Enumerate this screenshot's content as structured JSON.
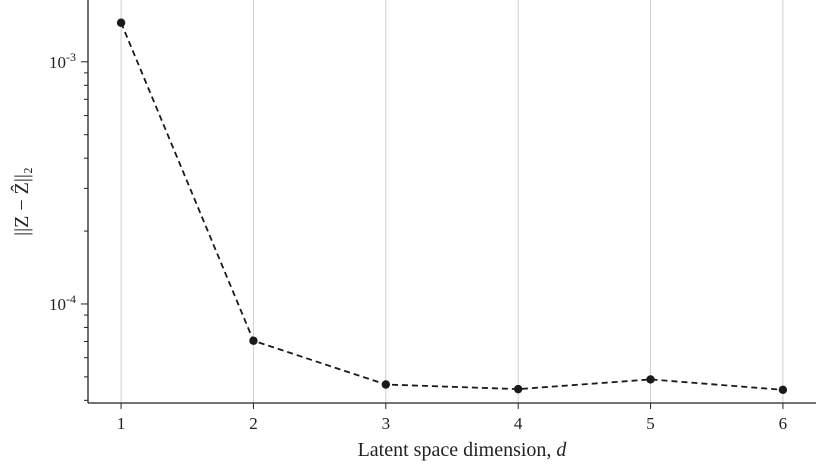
{
  "chart_data": {
    "type": "line",
    "title": "",
    "xlabel": "Latent space dimension, ",
    "xlabel_var": "d",
    "ylabel_tex": "||Z − Ẑ||₂",
    "y_scale": "log",
    "ylim": [
      3.9e-05,
      0.0018
    ],
    "xlim": [
      0.75,
      6.25
    ],
    "x_ticks": [
      1,
      2,
      3,
      4,
      5,
      6
    ],
    "x_tick_labels": [
      "1",
      "2",
      "3",
      "4",
      "5",
      "6"
    ],
    "y_major_ticks": [
      0.0001,
      0.001
    ],
    "y_major_tick_labels": [
      {
        "base": "10",
        "exp": "-4"
      },
      {
        "base": "10",
        "exp": "-3"
      }
    ],
    "grid": "vertical-major",
    "series": [
      {
        "x": [
          1,
          2,
          3,
          4,
          5,
          6
        ],
        "values": [
          0.00145,
          7.05e-05,
          4.65e-05,
          4.45e-05,
          4.88e-05,
          4.42e-05
        ],
        "style": "dashed",
        "marker": "circle",
        "color": "#1a1a1a"
      }
    ]
  }
}
